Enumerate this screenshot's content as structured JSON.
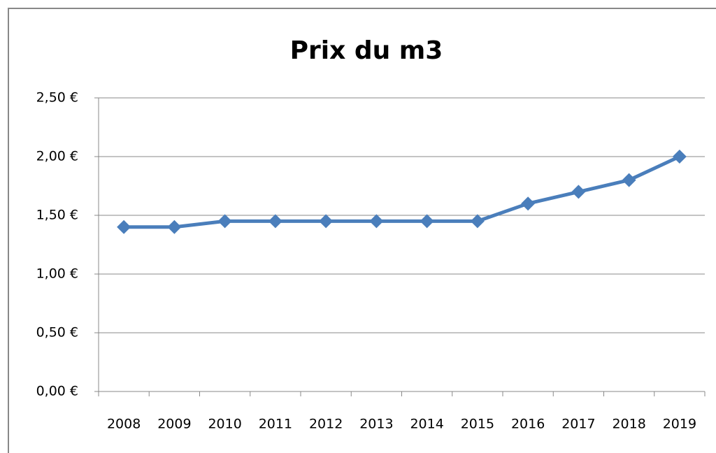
{
  "chart_data": {
    "type": "line",
    "title": "Prix du m3",
    "categories": [
      "2008",
      "2009",
      "2010",
      "2011",
      "2012",
      "2013",
      "2014",
      "2015",
      "2016",
      "2017",
      "2018",
      "2019"
    ],
    "series": [
      {
        "name": "Prix du m3",
        "color": "#4a7ebb",
        "values": [
          1.4,
          1.4,
          1.45,
          1.45,
          1.45,
          1.45,
          1.45,
          1.45,
          1.6,
          1.7,
          1.8,
          2.0
        ]
      }
    ],
    "ylim": [
      0,
      2.5
    ],
    "yticks": [
      {
        "value": 0,
        "label": "0,00 €"
      },
      {
        "value": 0.5,
        "label": "0,50 €"
      },
      {
        "value": 1,
        "label": "1,00 €"
      },
      {
        "value": 1.5,
        "label": "1,50 €"
      },
      {
        "value": 2,
        "label": "2,00 €"
      },
      {
        "value": 2.5,
        "label": "2,50 €"
      }
    ],
    "grid": true
  }
}
